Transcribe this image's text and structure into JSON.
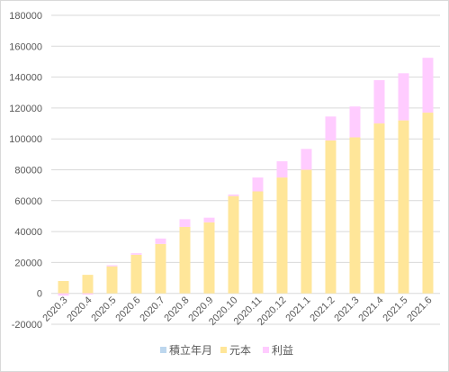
{
  "chart_data": {
    "type": "bar",
    "stacked": true,
    "categories": [
      "2020.3",
      "2020.4",
      "2020.5",
      "2020.6",
      "2020.7",
      "2020.8",
      "2020.9",
      "2020.10",
      "2020.11",
      "2020.12",
      "2021.1",
      "2021.2",
      "2021.3",
      "2021.4",
      "2021.5",
      "2021.6"
    ],
    "series": [
      {
        "name": "積立年月",
        "color": "#bdd7ee",
        "values": [
          0,
          0,
          0,
          0,
          0,
          0,
          0,
          0,
          0,
          0,
          0,
          0,
          0,
          0,
          0,
          0
        ]
      },
      {
        "name": "元本",
        "color": "#ffe699",
        "values": [
          8000,
          12000,
          17500,
          25000,
          32000,
          43000,
          46000,
          63000,
          66000,
          75000,
          80000,
          99000,
          101000,
          110000,
          112000,
          117000
        ]
      },
      {
        "name": "利益",
        "color": "#ffccff",
        "values": [
          -1500,
          -800,
          700,
          1000,
          3500,
          5000,
          3000,
          1000,
          9000,
          10500,
          13500,
          15500,
          20000,
          28000,
          30500,
          35500
        ]
      }
    ],
    "ylim": [
      -20000,
      180000
    ],
    "ytick_step": 20000,
    "grid": true,
    "legend": "bottom"
  }
}
